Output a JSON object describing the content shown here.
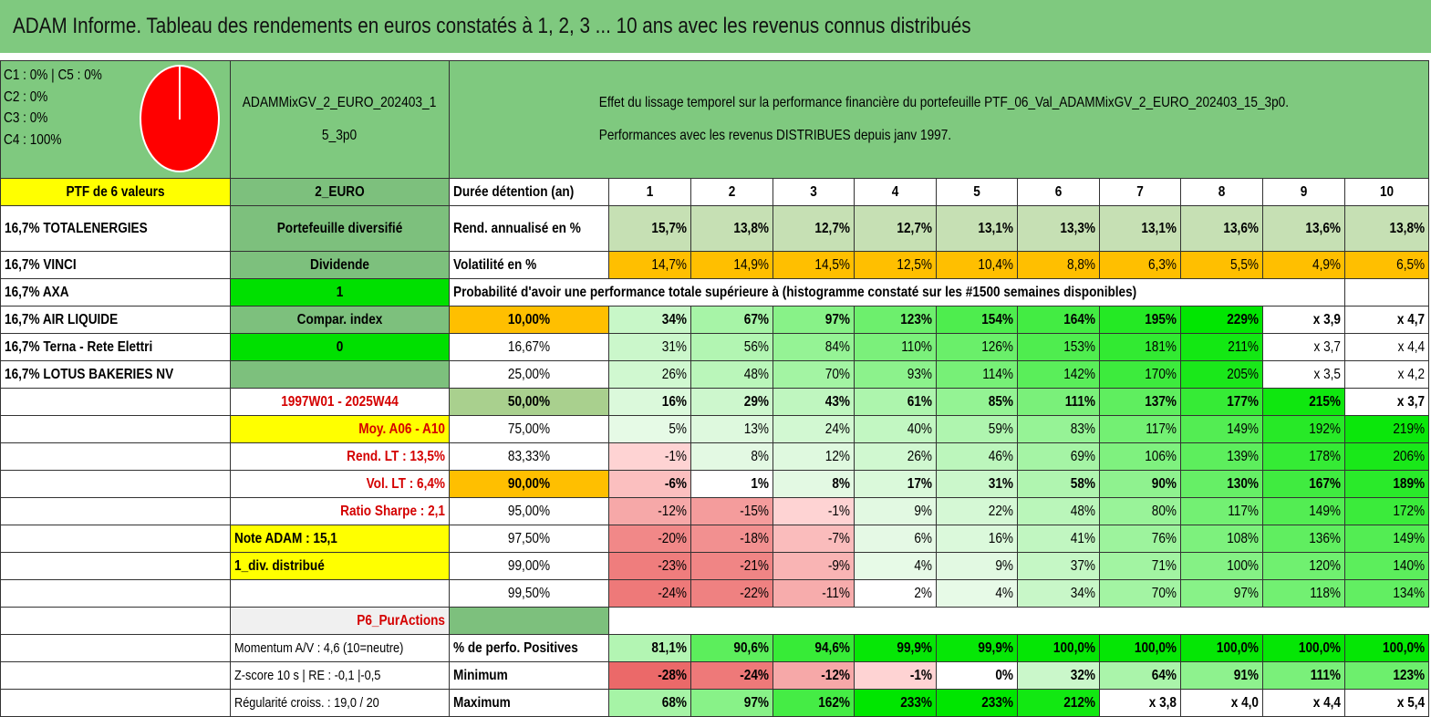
{
  "header": {
    "title": "ADAM Informe. Tableau des rendements en euros constatés à 1, 2, 3 ... 10 ans avec les revenus connus distribués"
  },
  "top": {
    "legend": [
      "C1 : 0% | C5 : 0%",
      "C2 : 0%",
      "C3 : 0%",
      "C4 : 100%"
    ],
    "pie": {
      "slices": [
        {
          "label": "C4",
          "value": 100,
          "color": "#ff0000"
        }
      ]
    },
    "portfolio_name": "ADAMMixGV_2_EURO_202403_15_3p0",
    "description_line1": "Effet du lissage temporel sur la performance financière du portefeuille PTF_06_Val_ADAMMixGV_2_EURO_202403_15_3p0.",
    "description_line2": "Performances avec les revenus DISTRIBUES depuis janv 1997."
  },
  "row_durations": {
    "a": "PTF de 6 valeurs",
    "b": "2_EURO",
    "label": "Durée détention (an)",
    "values": [
      "1",
      "2",
      "3",
      "4",
      "5",
      "6",
      "7",
      "8",
      "9",
      "10"
    ]
  },
  "row_rend": {
    "a": "16,7% TOTALENERGIES",
    "b": "Portefeuille diversifié",
    "label": "Rend. annualisé en %",
    "values": [
      "15,7%",
      "13,8%",
      "12,7%",
      "12,7%",
      "13,1%",
      "13,3%",
      "13,1%",
      "13,6%",
      "13,6%",
      "13,8%"
    ]
  },
  "row_vol": {
    "a": "16,7% VINCI",
    "b": "Dividende",
    "label": "Volatilité en %",
    "values": [
      "14,7%",
      "14,9%",
      "14,5%",
      "12,5%",
      "10,4%",
      "8,8%",
      "6,3%",
      "5,5%",
      "4,9%",
      "6,5%"
    ]
  },
  "row_prob": {
    "a": "16,7% AXA",
    "b": "1",
    "text": "Probabilité d'avoir une performance totale supérieure à (histogramme constaté sur les #1500 semaines disponibles)"
  },
  "quantiles": [
    {
      "a": "16,7% AIR LIQUIDE",
      "b": "Compar. index",
      "q": "10,00%",
      "v": [
        "34%",
        "67%",
        "97%",
        "123%",
        "154%",
        "164%",
        "195%",
        "229%",
        "x 3,9",
        "x 4,7"
      ]
    },
    {
      "a": "16,7% Terna - Rete Elettri",
      "b": "0",
      "q": "16,67%",
      "v": [
        "31%",
        "56%",
        "84%",
        "110%",
        "126%",
        "153%",
        "181%",
        "211%",
        "x 3,7",
        "x 4,4"
      ]
    },
    {
      "a": "16,7% LOTUS BAKERIES NV",
      "b": "",
      "q": "25,00%",
      "v": [
        "26%",
        "48%",
        "70%",
        "93%",
        "114%",
        "142%",
        "170%",
        "205%",
        "x 3,5",
        "x 4,2"
      ]
    },
    {
      "a": "",
      "b": "1997W01 - 2025W44",
      "q": "50,00%",
      "v": [
        "16%",
        "29%",
        "43%",
        "61%",
        "85%",
        "111%",
        "137%",
        "177%",
        "215%",
        "x 3,7"
      ]
    },
    {
      "a": "",
      "b": "Moy. A06 - A10",
      "q": "75,00%",
      "v": [
        "5%",
        "13%",
        "24%",
        "40%",
        "59%",
        "83%",
        "117%",
        "149%",
        "192%",
        "219%"
      ]
    },
    {
      "a": "",
      "b": "Rend. LT : 13,5%",
      "q": "83,33%",
      "v": [
        "-1%",
        "8%",
        "12%",
        "26%",
        "46%",
        "69%",
        "106%",
        "139%",
        "178%",
        "206%"
      ]
    },
    {
      "a": "",
      "b": "Vol. LT : 6,4%",
      "q": "90,00%",
      "v": [
        "-6%",
        "1%",
        "8%",
        "17%",
        "31%",
        "58%",
        "90%",
        "130%",
        "167%",
        "189%"
      ]
    },
    {
      "a": "",
      "b": "Ratio Sharpe : 2,1",
      "q": "95,00%",
      "v": [
        "-12%",
        "-15%",
        "-1%",
        "9%",
        "22%",
        "48%",
        "80%",
        "117%",
        "149%",
        "172%"
      ]
    },
    {
      "a": "",
      "b": "Note ADAM : 15,1",
      "q": "97,50%",
      "v": [
        "-20%",
        "-18%",
        "-7%",
        "6%",
        "16%",
        "41%",
        "76%",
        "108%",
        "136%",
        "149%"
      ]
    },
    {
      "a": "",
      "b": "1_div. distribué",
      "q": "99,00%",
      "v": [
        "-23%",
        "-21%",
        "-9%",
        "4%",
        "9%",
        "37%",
        "71%",
        "100%",
        "120%",
        "140%"
      ]
    },
    {
      "a": "",
      "b": "",
      "q": "99,50%",
      "v": [
        "-24%",
        "-22%",
        "-11%",
        "2%",
        "4%",
        "34%",
        "70%",
        "97%",
        "118%",
        "134%"
      ]
    }
  ],
  "row_p6": {
    "b": "P6_PurActions"
  },
  "stats": [
    {
      "b": "Momentum A/V : 4,6 (10=neutre)",
      "label": "% de perfo. Positives",
      "v": [
        "81,1%",
        "90,6%",
        "94,6%",
        "99,9%",
        "99,9%",
        "100,0%",
        "100,0%",
        "100,0%",
        "100,0%",
        "100,0%"
      ]
    },
    {
      "b": "Z-score 10 s | RE : -0,1 |-0,5",
      "label": "Minimum",
      "v": [
        "-28%",
        "-24%",
        "-12%",
        "-1%",
        "0%",
        "32%",
        "64%",
        "91%",
        "111%",
        "123%"
      ]
    },
    {
      "b": "Régularité croiss. : 19,0 / 20",
      "label": "Maximum",
      "v": [
        "68%",
        "97%",
        "162%",
        "233%",
        "233%",
        "212%",
        "x 3,8",
        "x 4,0",
        "x 4,4",
        "x 5,4"
      ]
    }
  ],
  "colors": {
    "header_green": "#7fc97f",
    "mid_green": "#7dc07d",
    "bright_green": "#00e000",
    "yellow": "#ffff00",
    "orange": "#ffbf00",
    "red_text": "#d40000"
  }
}
